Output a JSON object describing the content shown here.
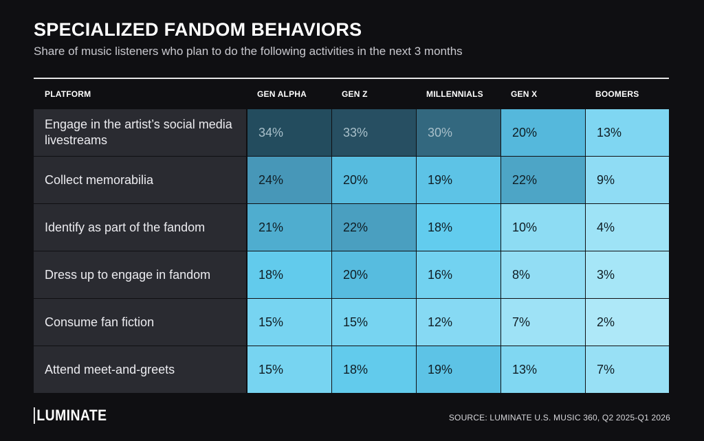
{
  "header": {
    "title": "SPECIALIZED FANDOM BEHAVIORS",
    "subtitle": "Share of music listeners who plan to do the following activities in the next 3 months"
  },
  "chart_data": {
    "type": "table",
    "title": "SPECIALIZED FANDOM BEHAVIORS",
    "subtitle": "Share of music listeners who plan to do the following activities in the next 3 months",
    "row_header": "PLATFORM",
    "columns": [
      "GEN ALPHA",
      "GEN Z",
      "MILLENNIALS",
      "GEN X",
      "BOOMERS"
    ],
    "rows": [
      {
        "label": "Engage in the artist’s social media livestreams",
        "values": [
          "34%",
          "33%",
          "30%",
          "20%",
          "13%"
        ]
      },
      {
        "label": "Collect memorabilia",
        "values": [
          "24%",
          "20%",
          "19%",
          "22%",
          "9%"
        ]
      },
      {
        "label": "Identify as part of the fandom",
        "values": [
          "21%",
          "22%",
          "18%",
          "10%",
          "4%"
        ]
      },
      {
        "label": "Dress up to engage in fandom",
        "values": [
          "18%",
          "20%",
          "16%",
          "8%",
          "3%"
        ]
      },
      {
        "label": "Consume fan fiction",
        "values": [
          "15%",
          "15%",
          "12%",
          "7%",
          "2%"
        ]
      },
      {
        "label": "Attend meet-and-greets",
        "values": [
          "15%",
          "18%",
          "19%",
          "13%",
          "7%"
        ]
      }
    ],
    "cell_colors": [
      [
        "#234c5e",
        "#274f62",
        "#33687f",
        "#55b8dc",
        "#7fd6f2"
      ],
      [
        "#4797b8",
        "#57bcdf",
        "#5dc3e6",
        "#4da5c6",
        "#8fdcf4"
      ],
      [
        "#4fadcf",
        "#4a9fc0",
        "#62ccee",
        "#8ddcf3",
        "#9ee3f6"
      ],
      [
        "#62cbec",
        "#57bcdf",
        "#72d2f0",
        "#92ddf4",
        "#a6e6f7"
      ],
      [
        "#77d4f1",
        "#77d4f1",
        "#86d9f3",
        "#9ee2f6",
        "#aee8f8"
      ],
      [
        "#77d4f1",
        "#62cbec",
        "#5dc3e6",
        "#80d7f2",
        "#98e0f5"
      ]
    ],
    "text_colors": [
      [
        "#a9c0ca",
        "#a9c0ca",
        "#a9c0ca",
        "#0f1d24",
        "#0f1d24"
      ],
      [
        "#0f1d24",
        "#0f1d24",
        "#0f1d24",
        "#0f1d24",
        "#0f1d24"
      ],
      [
        "#0f1d24",
        "#0f1d24",
        "#0f1d24",
        "#0f1d24",
        "#0f1d24"
      ],
      [
        "#0f1d24",
        "#0f1d24",
        "#0f1d24",
        "#0f1d24",
        "#0f1d24"
      ],
      [
        "#0f1d24",
        "#0f1d24",
        "#0f1d24",
        "#0f1d24",
        "#0f1d24"
      ],
      [
        "#0f1d24",
        "#0f1d24",
        "#0f1d24",
        "#0f1d24",
        "#0f1d24"
      ]
    ]
  },
  "footer": {
    "logo": "LUMINATE",
    "source": "SOURCE: LUMINATE U.S. MUSIC 360, Q2 2025-Q1 2026"
  }
}
